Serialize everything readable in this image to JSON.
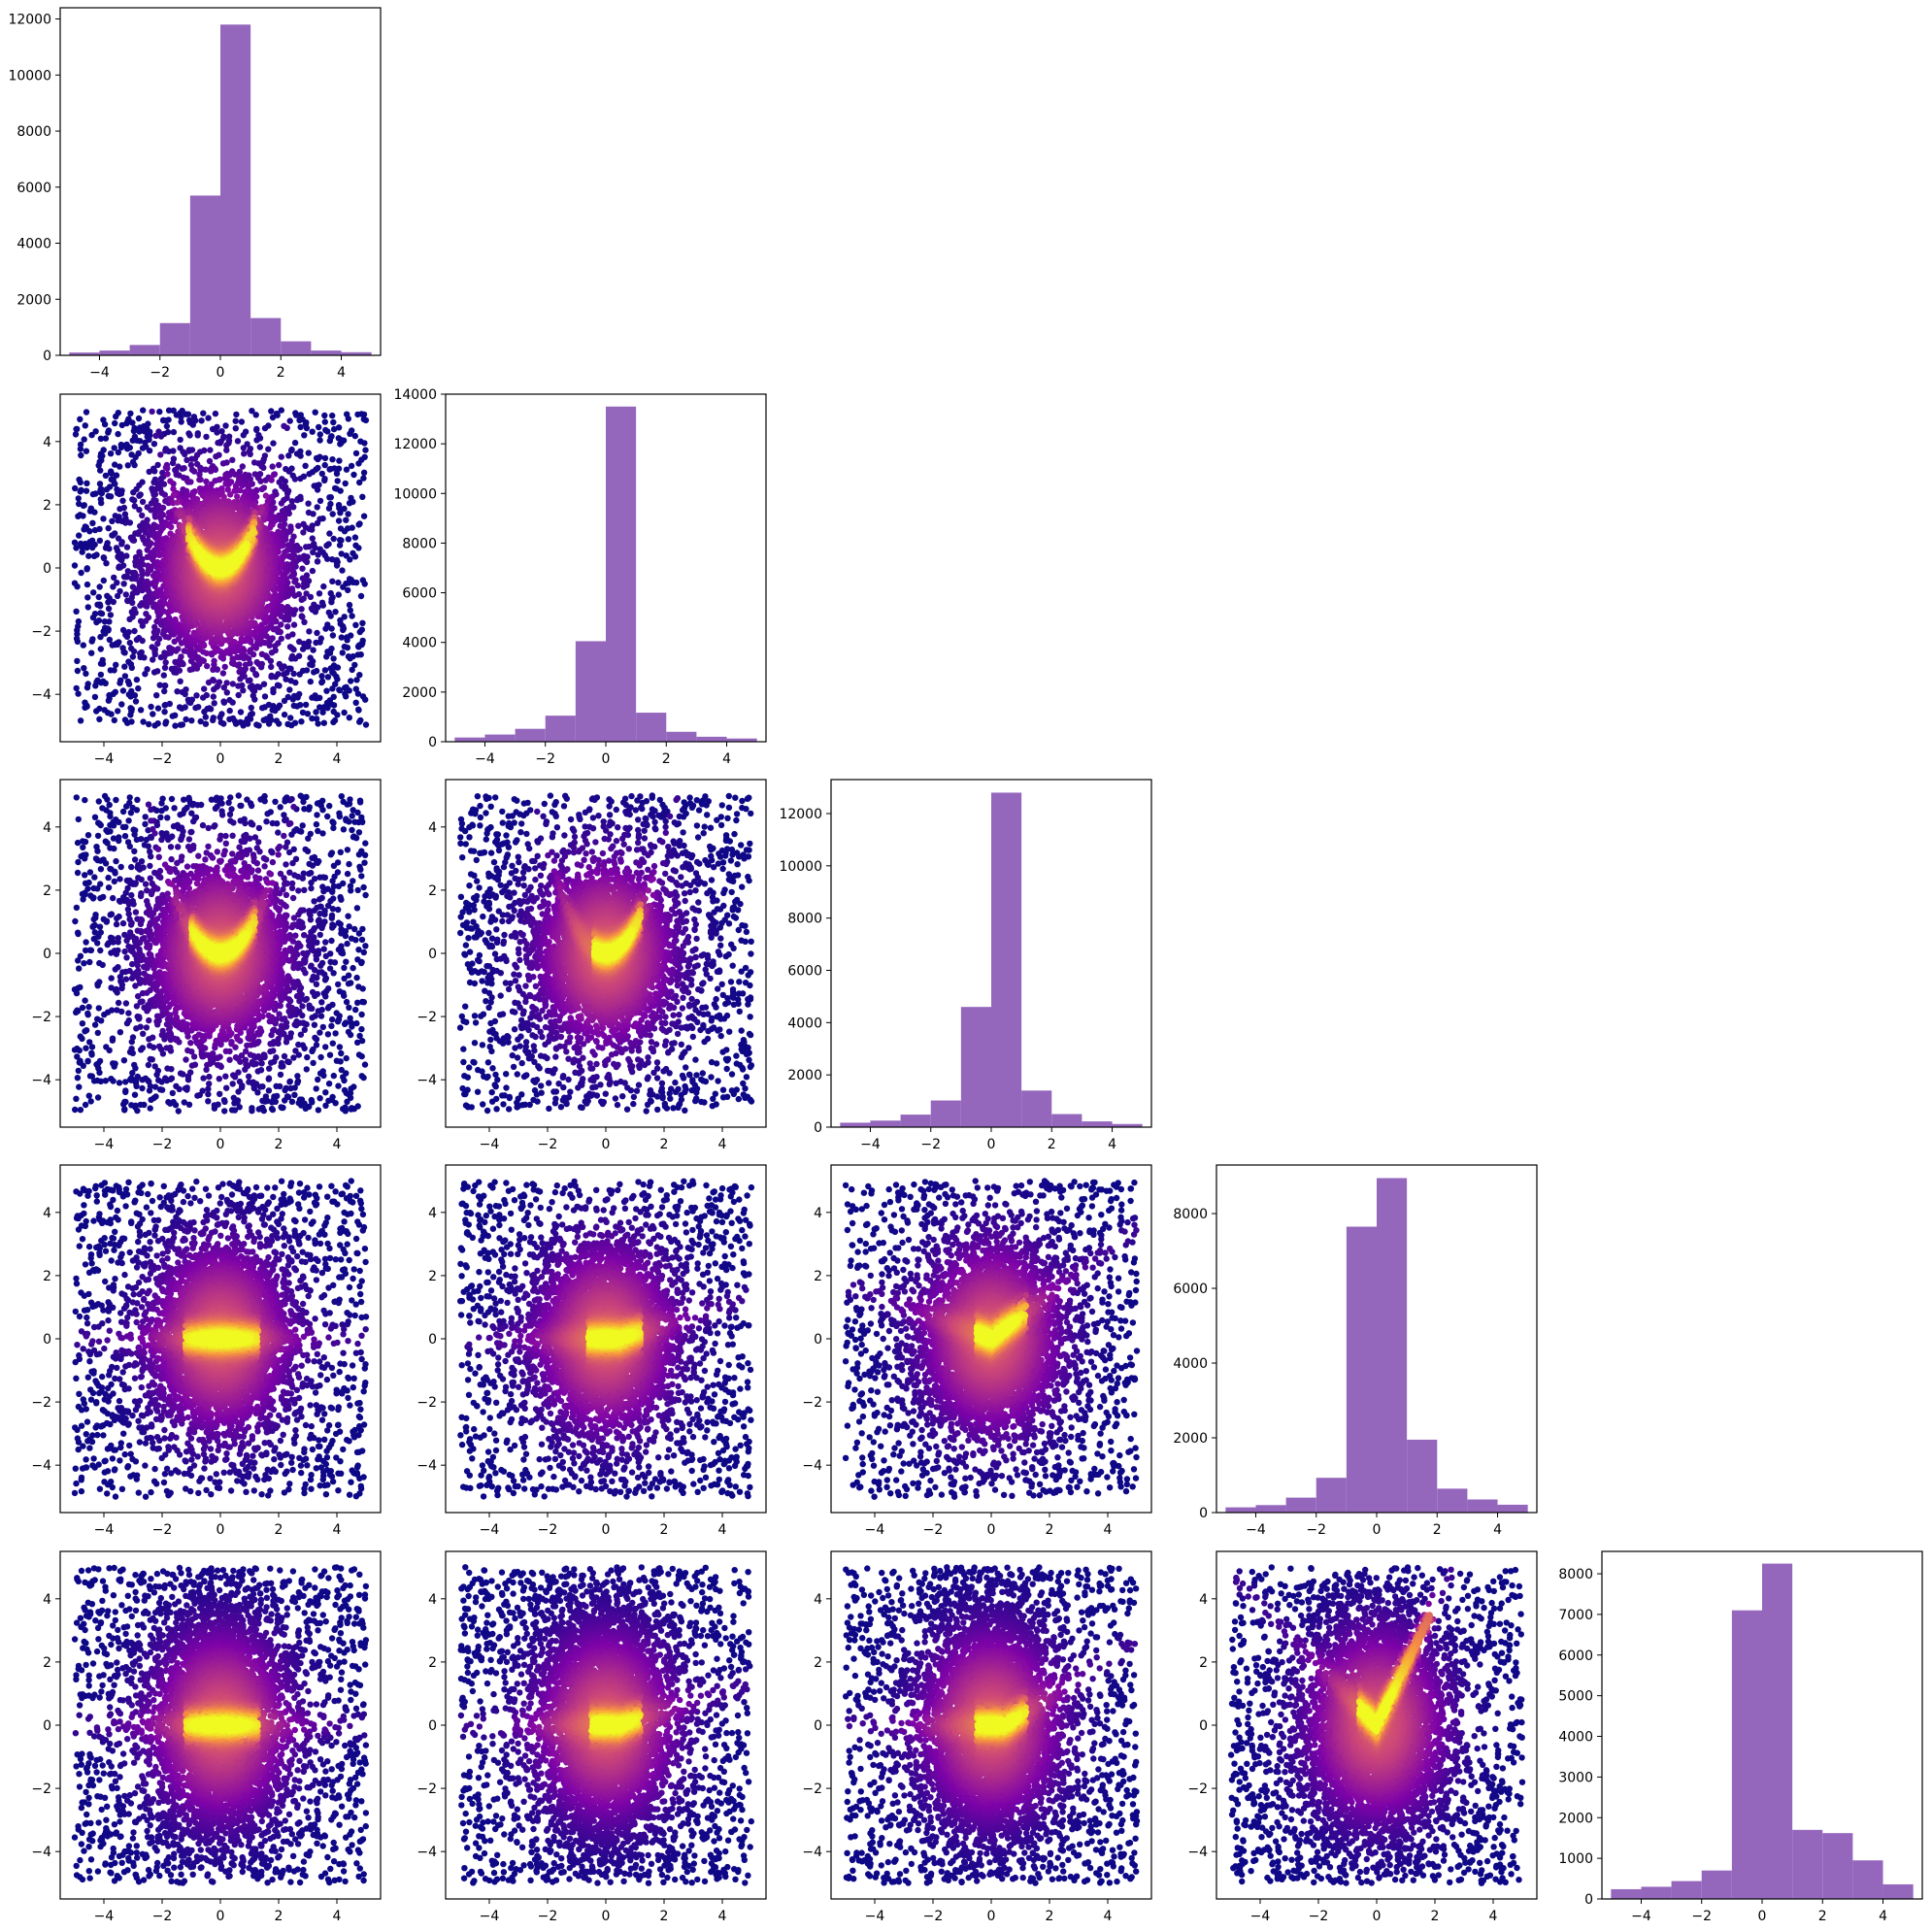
{
  "figure": {
    "type": "corner-plot",
    "dimensions": 5,
    "colors": {
      "histogram": "#9467bd",
      "scatter_colormap": "plasma",
      "scatter_low": "#1f0c8c",
      "scatter_high": "#fde725"
    }
  },
  "chart_data": [
    {
      "type": "bar",
      "row": 0,
      "col": 0,
      "title": "",
      "xlabel": "",
      "ylabel": "",
      "xlim": [
        -5.3,
        5.3
      ],
      "ylim": [
        0,
        12400
      ],
      "bin_edges": [
        -5,
        -4,
        -3,
        -2,
        -1,
        0,
        1,
        2,
        3,
        4,
        5
      ],
      "values": [
        100,
        170,
        370,
        1150,
        5700,
        11800,
        1330,
        500,
        170,
        110
      ],
      "xticks": [
        "−4",
        "−2",
        "0",
        "2",
        "4"
      ],
      "yticks": [
        "0",
        "2000",
        "4000",
        "6000",
        "8000",
        "10000",
        "12000"
      ],
      "yticks_values": [
        0,
        2000,
        4000,
        6000,
        8000,
        10000,
        12000
      ]
    },
    {
      "type": "bar",
      "row": 1,
      "col": 1,
      "title": "",
      "xlabel": "",
      "ylabel": "",
      "xlim": [
        -5.3,
        5.3
      ],
      "ylim": [
        0,
        14000
      ],
      "bin_edges": [
        -5,
        -4,
        -3,
        -2,
        -1,
        0,
        1,
        2,
        3,
        4,
        5
      ],
      "values": [
        170,
        290,
        520,
        1050,
        4050,
        13500,
        1170,
        400,
        200,
        130
      ],
      "xticks": [
        "−4",
        "−2",
        "0",
        "2",
        "4"
      ],
      "yticks": [
        "0",
        "2000",
        "4000",
        "6000",
        "8000",
        "10000",
        "12000",
        "14000"
      ],
      "yticks_values": [
        0,
        2000,
        4000,
        6000,
        8000,
        10000,
        12000,
        14000
      ]
    },
    {
      "type": "bar",
      "row": 2,
      "col": 2,
      "title": "",
      "xlabel": "",
      "ylabel": "",
      "xlim": [
        -5.3,
        5.3
      ],
      "ylim": [
        0,
        13300
      ],
      "bin_edges": [
        -5,
        -4,
        -3,
        -2,
        -1,
        0,
        1,
        2,
        3,
        4,
        5
      ],
      "values": [
        170,
        250,
        480,
        1020,
        4600,
        12800,
        1400,
        500,
        220,
        120
      ],
      "xticks": [
        "−4",
        "−2",
        "0",
        "2",
        "4"
      ],
      "yticks": [
        "0",
        "2000",
        "4000",
        "6000",
        "8000",
        "10000",
        "12000"
      ],
      "yticks_values": [
        0,
        2000,
        4000,
        6000,
        8000,
        10000,
        12000
      ]
    },
    {
      "type": "bar",
      "row": 3,
      "col": 3,
      "title": "",
      "xlabel": "",
      "ylabel": "",
      "xlim": [
        -5.3,
        5.3
      ],
      "ylim": [
        0,
        9300
      ],
      "bin_edges": [
        -5,
        -4,
        -3,
        -2,
        -1,
        0,
        1,
        2,
        3,
        4,
        5
      ],
      "values": [
        140,
        200,
        400,
        930,
        7650,
        8950,
        1950,
        640,
        350,
        210
      ],
      "xticks": [
        "−4",
        "−2",
        "0",
        "2",
        "4"
      ],
      "yticks": [
        "0",
        "2000",
        "4000",
        "6000",
        "8000"
      ],
      "yticks_values": [
        0,
        2000,
        4000,
        6000,
        8000
      ]
    },
    {
      "type": "bar",
      "row": 4,
      "col": 4,
      "title": "",
      "xlabel": "",
      "ylabel": "",
      "xlim": [
        -5.3,
        5.3
      ],
      "ylim": [
        0,
        8550
      ],
      "bin_edges": [
        -5,
        -4,
        -3,
        -2,
        -1,
        0,
        1,
        2,
        3,
        4,
        5
      ],
      "values": [
        240,
        300,
        440,
        700,
        7100,
        8250,
        1700,
        1620,
        950,
        360
      ],
      "xticks": [
        "−4",
        "−2",
        "0",
        "2",
        "4"
      ],
      "yticks": [
        "0",
        "1000",
        "2000",
        "3000",
        "4000",
        "5000",
        "6000",
        "7000",
        "8000"
      ],
      "yticks_values": [
        0,
        1000,
        2000,
        3000,
        4000,
        5000,
        6000,
        7000,
        8000
      ]
    },
    {
      "type": "scatter",
      "row": 1,
      "col": 0,
      "title": "",
      "xlabel": "",
      "ylabel": "",
      "xlim": [
        -5.5,
        5.5
      ],
      "ylim": [
        -5.5,
        5.5
      ],
      "xticks": [
        "−4",
        "−2",
        "0",
        "2",
        "4"
      ],
      "yticks": [
        "−4",
        "−2",
        "0",
        "2",
        "4"
      ],
      "ticks_values": [
        -4,
        -2,
        0,
        2,
        4
      ],
      "points_uniform": 1500,
      "points_gauss": 4200,
      "gauss_spread": [
        1.1,
        1.15
      ],
      "curve": "parabola",
      "curve_x": [
        -0.8,
        0.9
      ],
      "curve_a": 0.9,
      "curve_points": 420
    },
    {
      "type": "scatter",
      "row": 2,
      "col": 0,
      "title": "",
      "xlabel": "",
      "ylabel": "",
      "xlim": [
        -5.5,
        5.5
      ],
      "ylim": [
        -5.5,
        5.5
      ],
      "xticks": [
        "−4",
        "−2",
        "0",
        "2",
        "4"
      ],
      "yticks": [
        "−4",
        "−2",
        "0",
        "2",
        "4"
      ],
      "ticks_values": [
        -4,
        -2,
        0,
        2,
        4
      ],
      "points_uniform": 1500,
      "points_gauss": 4200,
      "gauss_spread": [
        1.1,
        1.15
      ],
      "curve": "parabola",
      "curve_x": [
        -0.7,
        0.9
      ],
      "curve_a": 0.75,
      "curve_points": 380
    },
    {
      "type": "scatter",
      "row": 2,
      "col": 1,
      "title": "",
      "xlabel": "",
      "ylabel": "",
      "xlim": [
        -5.5,
        5.5
      ],
      "ylim": [
        -5.5,
        5.5
      ],
      "xticks": [
        "−4",
        "−2",
        "0",
        "2",
        "4"
      ],
      "yticks": [
        "−4",
        "−2",
        "0",
        "2",
        "4"
      ],
      "ticks_values": [
        -4,
        -2,
        0,
        2,
        4
      ],
      "points_uniform": 1500,
      "points_gauss": 4200,
      "gauss_spread": [
        1.1,
        1.15
      ],
      "curve": "parabola",
      "curve_x": [
        -0.1,
        0.9
      ],
      "curve_a": 0.85,
      "curve_points": 320
    },
    {
      "type": "scatter",
      "row": 3,
      "col": 0,
      "title": "",
      "xlabel": "",
      "ylabel": "",
      "xlim": [
        -5.5,
        5.5
      ],
      "ylim": [
        -5.5,
        5.5
      ],
      "xticks": [
        "−4",
        "−2",
        "0",
        "2",
        "4"
      ],
      "yticks": [
        "−4",
        "−2",
        "0",
        "2",
        "4"
      ],
      "ticks_values": [
        -4,
        -2,
        0,
        2,
        4
      ],
      "points_uniform": 1500,
      "points_gauss": 4200,
      "gauss_spread": [
        1.1,
        1.3
      ],
      "curve": "flat",
      "curve_x": [
        -0.9,
        1.0
      ],
      "curve_a": 0.0,
      "curve_points": 360
    },
    {
      "type": "scatter",
      "row": 3,
      "col": 1,
      "title": "",
      "xlabel": "",
      "ylabel": "",
      "xlim": [
        -5.5,
        5.5
      ],
      "ylim": [
        -5.5,
        5.5
      ],
      "xticks": [
        "−4",
        "−2",
        "0",
        "2",
        "4"
      ],
      "yticks": [
        "−4",
        "−2",
        "0",
        "2",
        "4"
      ],
      "ticks_values": [
        -4,
        -2,
        0,
        2,
        4
      ],
      "points_uniform": 1500,
      "points_gauss": 4200,
      "gauss_spread": [
        1.1,
        1.3
      ],
      "curve": "flat",
      "curve_x": [
        -0.3,
        0.9
      ],
      "curve_a": 0.15,
      "curve_points": 320
    },
    {
      "type": "scatter",
      "row": 3,
      "col": 2,
      "title": "",
      "xlabel": "",
      "ylabel": "",
      "xlim": [
        -5.5,
        5.5
      ],
      "ylim": [
        -5.5,
        5.5
      ],
      "xticks": [
        "−4",
        "−2",
        "0",
        "2",
        "4"
      ],
      "yticks": [
        "−4",
        "−2",
        "0",
        "2",
        "4"
      ],
      "ticks_values": [
        -4,
        -2,
        0,
        2,
        4
      ],
      "points_uniform": 1500,
      "points_gauss": 4200,
      "gauss_spread": [
        1.1,
        1.3
      ],
      "curve": "vee",
      "curve_x": [
        -0.2,
        0.9
      ],
      "curve_a": 0.7,
      "curve_points": 320
    },
    {
      "type": "scatter",
      "row": 4,
      "col": 0,
      "title": "",
      "xlabel": "",
      "ylabel": "",
      "xlim": [
        -5.5,
        5.5
      ],
      "ylim": [
        -5.5,
        5.5
      ],
      "xticks": [
        "−4",
        "−2",
        "0",
        "2",
        "4"
      ],
      "yticks": [
        "−4",
        "−2",
        "0",
        "2",
        "4"
      ],
      "ticks_values": [
        -4,
        -2,
        0,
        2,
        4
      ],
      "points_uniform": 1500,
      "points_gauss": 4200,
      "gauss_spread": [
        1.1,
        1.9
      ],
      "curve": "flat",
      "curve_x": [
        -0.9,
        1.0
      ],
      "curve_a": 0.0,
      "curve_points": 360
    },
    {
      "type": "scatter",
      "row": 4,
      "col": 1,
      "title": "",
      "xlabel": "",
      "ylabel": "",
      "xlim": [
        -5.5,
        5.5
      ],
      "ylim": [
        -5.5,
        5.5
      ],
      "xticks": [
        "−4",
        "−2",
        "0",
        "2",
        "4"
      ],
      "yticks": [
        "−4",
        "−2",
        "0",
        "2",
        "4"
      ],
      "ticks_values": [
        -4,
        -2,
        0,
        2,
        4
      ],
      "points_uniform": 1500,
      "points_gauss": 4200,
      "gauss_spread": [
        1.1,
        1.9
      ],
      "curve": "flat",
      "curve_x": [
        -0.2,
        0.9
      ],
      "curve_a": 0.15,
      "curve_points": 320
    },
    {
      "type": "scatter",
      "row": 4,
      "col": 2,
      "title": "",
      "xlabel": "",
      "ylabel": "",
      "xlim": [
        -5.5,
        5.5
      ],
      "ylim": [
        -5.5,
        5.5
      ],
      "xticks": [
        "−4",
        "−2",
        "0",
        "2",
        "4"
      ],
      "yticks": [
        "−4",
        "−2",
        "0",
        "2",
        "4"
      ],
      "ticks_values": [
        -4,
        -2,
        0,
        2,
        4
      ],
      "points_uniform": 1500,
      "points_gauss": 4200,
      "gauss_spread": [
        1.1,
        1.9
      ],
      "curve": "flat",
      "curve_x": [
        -0.2,
        0.9
      ],
      "curve_a": 0.3,
      "curve_points": 320
    },
    {
      "type": "scatter",
      "row": 4,
      "col": 3,
      "title": "",
      "xlabel": "",
      "ylabel": "",
      "xlim": [
        -5.5,
        5.5
      ],
      "ylim": [
        -5.5,
        5.5
      ],
      "xticks": [
        "−4",
        "−2",
        "0",
        "2",
        "4"
      ],
      "yticks": [
        "−4",
        "−2",
        "0",
        "2",
        "4"
      ],
      "ticks_values": [
        -4,
        -2,
        0,
        2,
        4
      ],
      "points_uniform": 1500,
      "points_gauss": 4200,
      "gauss_spread": [
        1.2,
        1.9
      ],
      "curve": "vee",
      "curve_x": [
        -0.3,
        1.8
      ],
      "curve_a": 1.9,
      "curve_points": 360
    }
  ]
}
